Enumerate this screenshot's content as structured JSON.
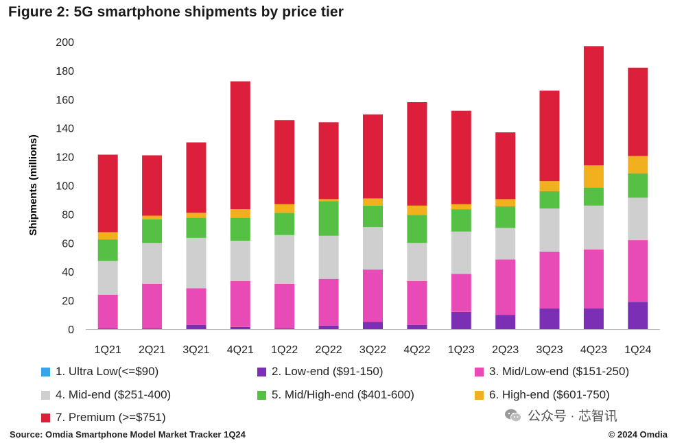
{
  "colors": {
    "ultra_low": "#3ba3e8",
    "low_end": "#7a2fb4",
    "mid_low_end": "#e84bb5",
    "mid_end": "#cfcfcf",
    "mid_high_end": "#56c045",
    "high_end": "#f2b01e",
    "premium": "#dc1f3a"
  },
  "watermark": {
    "icon": "wechat-icon",
    "text": "公众号 · 芯智讯"
  },
  "source": "Source: Omdia Smartphone Model Market Tracker 1Q24",
  "copyright": "© 2024 Omdia",
  "chart_data": {
    "type": "bar",
    "stacked": true,
    "title": "Figure 2: 5G smartphone shipments by price tier",
    "ylabel": "Shipments (millions)",
    "ylim": [
      0,
      200
    ],
    "yticks": [
      0,
      20,
      40,
      60,
      80,
      100,
      120,
      140,
      160,
      180,
      200
    ],
    "grid": false,
    "legend_position": "bottom",
    "categories": [
      "1Q21",
      "2Q21",
      "3Q21",
      "4Q21",
      "1Q22",
      "2Q22",
      "3Q22",
      "4Q22",
      "1Q23",
      "2Q23",
      "3Q23",
      "4Q23",
      "1Q24"
    ],
    "series": [
      {
        "name": "1. Ultra Low(<=$90)",
        "color_key": "ultra_low",
        "values": [
          0,
          0,
          0,
          0,
          0,
          0,
          0,
          0,
          0,
          0,
          0,
          0,
          0
        ]
      },
      {
        "name": "2. Low-end ($91-150)",
        "color_key": "low_end",
        "values": [
          0.5,
          0.5,
          3,
          1.5,
          0.5,
          2.5,
          5,
          3,
          12,
          10,
          14.5,
          14.5,
          19
        ]
      },
      {
        "name": "3. Mid/Low-end ($151-250)",
        "color_key": "mid_low_end",
        "values": [
          23.5,
          31,
          25.5,
          32,
          31,
          32.5,
          36.5,
          30.5,
          26.5,
          38.5,
          39.5,
          41,
          43
        ]
      },
      {
        "name": "4. Mid-end ($251-400)",
        "color_key": "mid_end",
        "values": [
          23.5,
          28.5,
          35,
          28,
          34,
          30,
          29.5,
          26.5,
          29.5,
          22,
          30,
          30.5,
          29.5
        ]
      },
      {
        "name": "5. Mid/High-end ($401-600)",
        "color_key": "mid_high_end",
        "values": [
          15,
          16.5,
          14,
          16,
          15.5,
          24,
          15,
          19.5,
          15.5,
          15,
          12,
          12.5,
          17
        ]
      },
      {
        "name": "6. High-end ($601-750)",
        "color_key": "high_end",
        "values": [
          5,
          2.5,
          3.5,
          6,
          6,
          1.5,
          5,
          6.5,
          3.5,
          5,
          7,
          15.5,
          12
        ]
      },
      {
        "name": "7. Premium (>=$751)",
        "color_key": "premium",
        "values": [
          54,
          42,
          49,
          89,
          58.5,
          53.5,
          58.5,
          72,
          65,
          46.5,
          63,
          83,
          61.5
        ]
      }
    ]
  }
}
